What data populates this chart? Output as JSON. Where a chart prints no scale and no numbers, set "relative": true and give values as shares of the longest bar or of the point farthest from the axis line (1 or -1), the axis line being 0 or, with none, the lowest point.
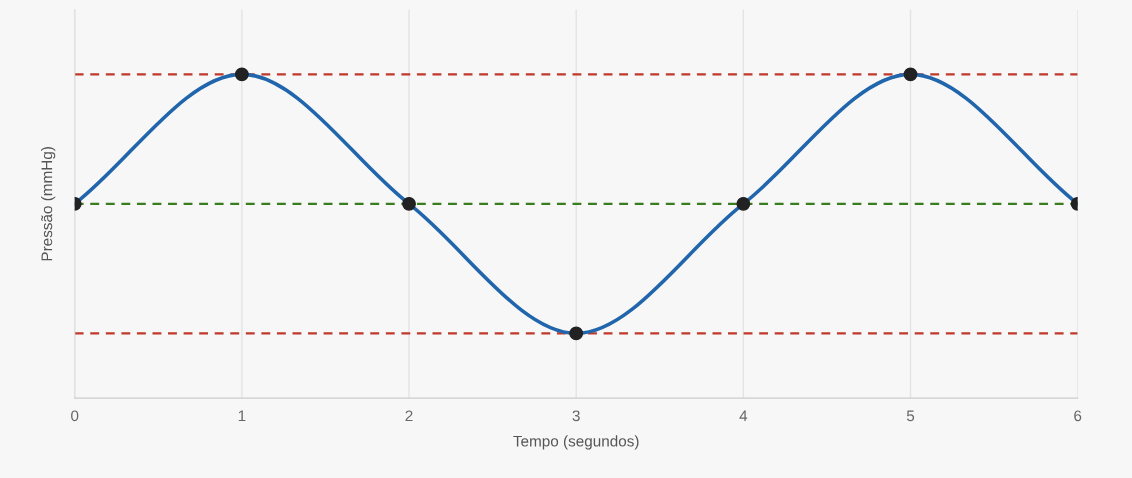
{
  "chart_data": {
    "type": "line",
    "xlabel": "Tempo (segundos)",
    "ylabel": "Pressão (mmHg)",
    "relative": true,
    "x": [
      0,
      1,
      2,
      3,
      4,
      5,
      6
    ],
    "series": [
      {
        "color": "#2166ac",
        "values": [
          0.6,
          1,
          0.6,
          0.2,
          0.6,
          1,
          0.6
        ]
      }
    ],
    "xlim": [
      0,
      6
    ],
    "xticks": [
      0,
      1,
      2,
      3,
      4,
      5,
      6
    ],
    "ref_lines": [
      {
        "axis": "y",
        "value": 1,
        "color": "#c0392b",
        "line_style": "dashed"
      },
      {
        "axis": "y",
        "value": 0.6,
        "color": "#3a7d1e",
        "line_style": "dashed"
      },
      {
        "axis": "y",
        "value": 0.2,
        "color": "#c0392b",
        "line_style": "dashed"
      }
    ],
    "marker": "circle",
    "line_style": "solid",
    "grid": "x",
    "legend": false
  }
}
